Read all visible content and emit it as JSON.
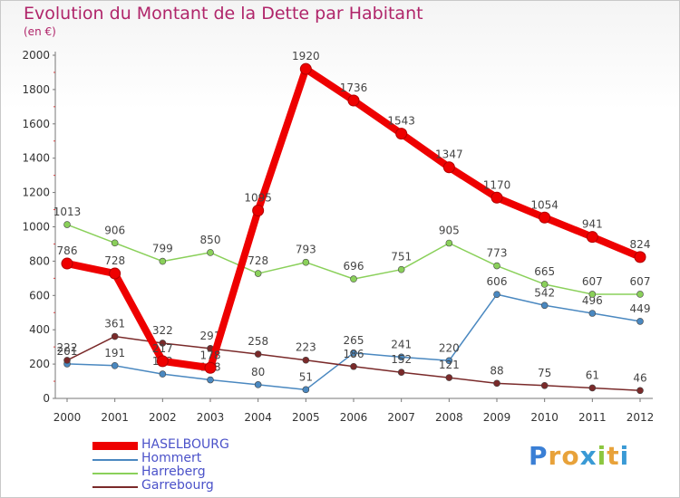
{
  "title": "Evolution du Montant de la Dette par Habitant",
  "subtitle": "(en €)",
  "logo": "Proxiti",
  "chart_data": {
    "type": "line",
    "title": "Evolution du Montant de la Dette par Habitant",
    "ylabel": "(en €)",
    "xlabel": "",
    "ylim": [
      0,
      2000
    ],
    "yticks": [
      0,
      200,
      400,
      600,
      800,
      1000,
      1200,
      1400,
      1600,
      1800,
      2000
    ],
    "grid": false,
    "legend": "bottom-left",
    "categories": [
      "2000",
      "2001",
      "2002",
      "2003",
      "2004",
      "2005",
      "2006",
      "2007",
      "2008",
      "2009",
      "2010",
      "2011",
      "2012"
    ],
    "series": [
      {
        "name": "Hommert",
        "color": "#4a88c0",
        "values": [
          201,
          191,
          142,
          108,
          80,
          51,
          265,
          241,
          220,
          606,
          542,
          496,
          449
        ]
      },
      {
        "name": "Harreberg",
        "color": "#8ad05a",
        "values": [
          1013,
          906,
          799,
          850,
          728,
          793,
          696,
          751,
          905,
          773,
          665,
          607,
          607
        ]
      },
      {
        "name": "Garrebourg",
        "color": "#7a2a2a",
        "values": [
          222,
          361,
          322,
          291,
          258,
          223,
          186,
          152,
          121,
          88,
          75,
          61,
          46
        ]
      },
      {
        "name": "HASELBOURG",
        "color": "#ee0000",
        "values": [
          786,
          728,
          217,
          178,
          1095,
          1920,
          1736,
          1543,
          1347,
          1170,
          1054,
          941,
          824
        ]
      }
    ]
  }
}
